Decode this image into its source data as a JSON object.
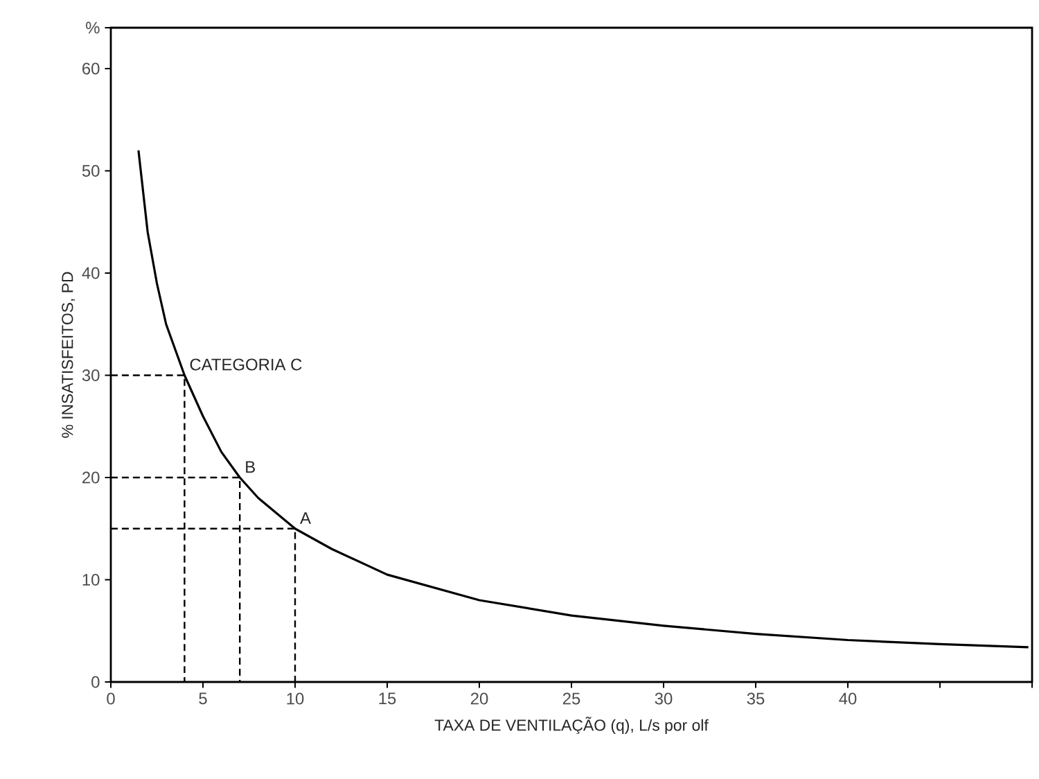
{
  "chart_data": {
    "type": "line",
    "xlabel": "TAXA DE VENTILAÇÃO (q), L/s por olf",
    "ylabel": "% INSATISFEITOS, PD",
    "xlim": [
      0,
      50
    ],
    "ylim": [
      0,
      64
    ],
    "xticks": [
      0,
      5,
      10,
      15,
      20,
      25,
      30,
      35,
      40,
      {
        "value": 45,
        "label": null
      },
      {
        "value": 50,
        "label": null
      }
    ],
    "yticks": [
      0,
      10,
      20,
      30,
      40,
      50,
      60,
      {
        "value": 64,
        "label": "%"
      }
    ],
    "marker": "none",
    "series": [
      {
        "color": "#000000",
        "line_style": "solid",
        "x": [
          1.5,
          2,
          2.5,
          3,
          4,
          5,
          6,
          7,
          8,
          10,
          12,
          15,
          20,
          25,
          30,
          35,
          40,
          45,
          49.8
        ],
        "values": [
          52,
          44,
          39,
          35,
          30,
          26,
          22.5,
          20,
          18,
          15,
          13,
          10.5,
          8,
          6.5,
          5.5,
          4.7,
          4.1,
          3.7,
          3.4
        ]
      },
      {
        "color": "#000000",
        "line_style": "dashed",
        "x": [
          0,
          4,
          4
        ],
        "values": [
          30,
          30,
          0
        ]
      },
      {
        "color": "#000000",
        "line_style": "dashed",
        "x": [
          0,
          7,
          7
        ],
        "values": [
          20,
          20,
          0
        ]
      },
      {
        "color": "#000000",
        "line_style": "dashed",
        "x": [
          0,
          10,
          10
        ],
        "values": [
          15,
          15,
          0
        ]
      }
    ],
    "annotations": [
      {
        "text": "CATEGORIA C",
        "x": 4,
        "y": 30
      },
      {
        "text": "B",
        "x": 7,
        "y": 20
      },
      {
        "text": "A",
        "x": 10,
        "y": 15
      }
    ]
  }
}
